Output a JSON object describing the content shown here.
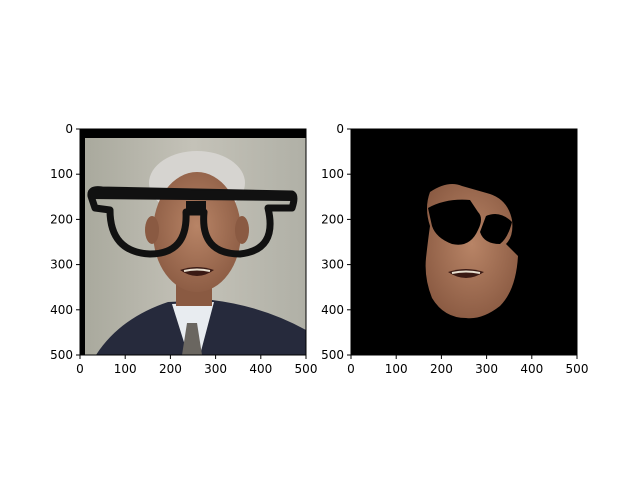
{
  "chart_data": [
    {
      "type": "image",
      "title": "",
      "xlabel": "",
      "ylabel": "",
      "xlim": [
        0,
        500
      ],
      "ylim": [
        500,
        0
      ],
      "xticks": [
        "0",
        "100",
        "200",
        "300",
        "400",
        "500"
      ],
      "yticks": [
        "0",
        "100",
        "200",
        "300",
        "400",
        "500"
      ],
      "content": "photo-with-glasses-overlay"
    },
    {
      "type": "image",
      "title": "",
      "xlabel": "",
      "ylabel": "",
      "xlim": [
        0,
        500
      ],
      "ylim": [
        500,
        0
      ],
      "xticks": [
        "0",
        "100",
        "200",
        "300",
        "400",
        "500"
      ],
      "yticks": [
        "0",
        "100",
        "200",
        "300",
        "400",
        "500"
      ],
      "content": "masked-face-on-black"
    }
  ],
  "colors": {
    "background": "#ffffff",
    "photo_backdrop": "#b8b8ae",
    "suit": "#262a3c",
    "skin": "#9c6c52",
    "mask": "#000000",
    "glasses": "#111111"
  },
  "icons": {
    "glasses": "eyeglasses-overlay-icon"
  }
}
